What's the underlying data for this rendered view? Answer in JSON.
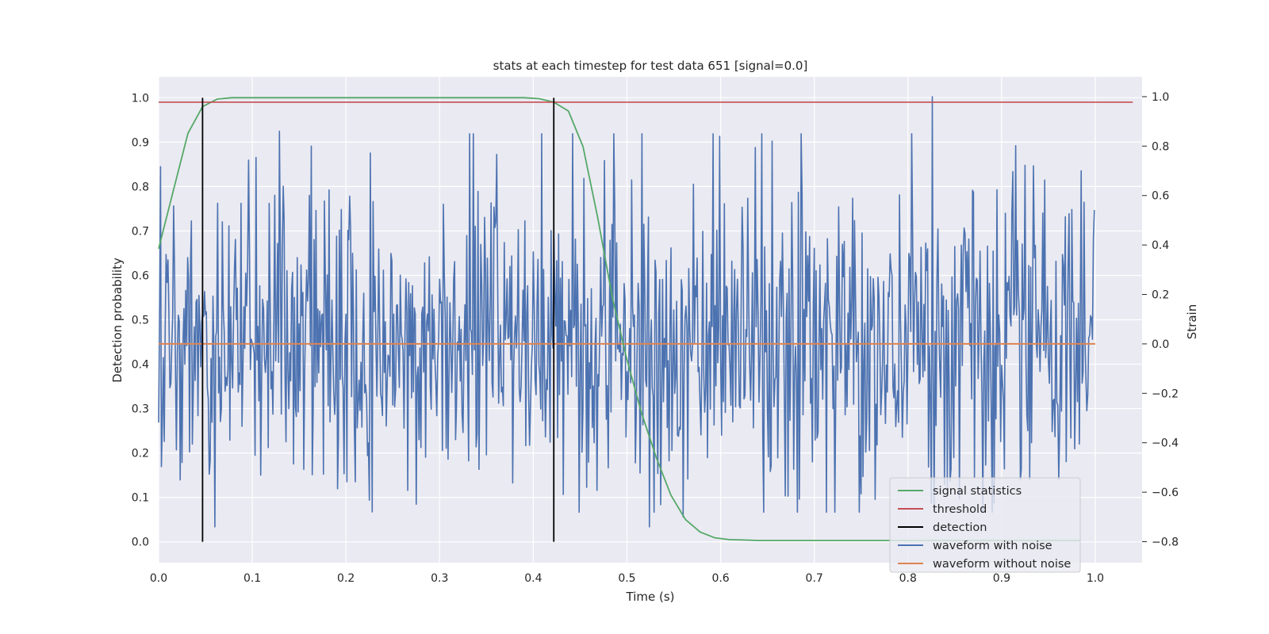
{
  "chart_data": {
    "type": "line",
    "title": "stats at each timestep for test data 651 [signal=0.0]",
    "xlabel": "Time (s)",
    "ylabel_left": "Detection probability",
    "ylabel_right": "Strain",
    "xlim": [
      0.0,
      1.05
    ],
    "ylim_left": [
      -0.047,
      1.047
    ],
    "ylim_right": [
      -0.885,
      1.08
    ],
    "x_ticks": [
      "0.0",
      "0.1",
      "0.2",
      "0.3",
      "0.4",
      "0.5",
      "0.6",
      "0.7",
      "0.8",
      "0.9",
      "1.0"
    ],
    "y_left_ticks": [
      "0.0",
      "0.1",
      "0.2",
      "0.3",
      "0.4",
      "0.5",
      "0.6",
      "0.7",
      "0.8",
      "0.9",
      "1.0"
    ],
    "y_right_ticks": [
      "−0.8",
      "−0.6",
      "−0.4",
      "−0.2",
      "0.0",
      "0.2",
      "0.4",
      "0.6",
      "0.8",
      "1.0"
    ],
    "grid": true,
    "legend_position": "lower-right",
    "series": [
      {
        "name": "signal statistics",
        "axis": "left",
        "color": "#55a868",
        "x": [
          0.0,
          0.0156,
          0.0313,
          0.0469,
          0.0625,
          0.0781,
          0.0938,
          0.1094,
          0.2,
          0.3,
          0.39,
          0.4063,
          0.4219,
          0.4375,
          0.4531,
          0.4688,
          0.4844,
          0.5,
          0.5156,
          0.5313,
          0.5469,
          0.5625,
          0.5781,
          0.5938,
          0.6094,
          0.625,
          0.6406,
          0.6563,
          0.7,
          0.8,
          0.9,
          0.95,
          0.9844
        ],
        "y": [
          0.66,
          0.79,
          0.92,
          0.98,
          0.997,
          1.0,
          1.0,
          1.0,
          1.0,
          1.0,
          1.0,
          0.998,
          0.99,
          0.97,
          0.89,
          0.73,
          0.55,
          0.41,
          0.29,
          0.19,
          0.105,
          0.05,
          0.022,
          0.009,
          0.005,
          0.004,
          0.003,
          0.003,
          0.003,
          0.003,
          0.003,
          0.003,
          0.003
        ]
      },
      {
        "name": "threshold",
        "axis": "left",
        "color": "#c44e52",
        "x": [
          0.0,
          1.04
        ],
        "y": [
          0.99,
          0.99
        ]
      },
      {
        "name": "detection",
        "axis": "left",
        "color": "#000000",
        "type": "vlines",
        "x": [
          0.0469,
          0.4219
        ],
        "ymin": 0.0,
        "ymax": 1.0
      },
      {
        "name": "waveform with noise",
        "axis": "right",
        "color": "#4c72b0",
        "x_start": 0.0,
        "x_step": 0.001,
        "n_points": 1000,
        "y_min": -0.74,
        "y_max": 1.0,
        "y_std": 0.3,
        "peaks": [
          {
            "x": 0.129,
            "y": 0.86
          },
          {
            "x": 0.163,
            "y": 0.8
          },
          {
            "x": 0.599,
            "y": 0.84
          },
          {
            "x": 0.655,
            "y": 0.82
          },
          {
            "x": 0.826,
            "y": 1.0
          },
          {
            "x": 0.934,
            "y": 0.72
          },
          {
            "x": 0.985,
            "y": 0.7
          },
          {
            "x": 0.06,
            "y": -0.74
          },
          {
            "x": 0.524,
            "y": -0.74
          },
          {
            "x": 0.228,
            "y": -0.68
          },
          {
            "x": 0.56,
            "y": -0.7
          }
        ]
      },
      {
        "name": "waveform without noise",
        "axis": "right",
        "color": "#dd8452",
        "x": [
          0.0,
          1.0
        ],
        "y": [
          0.0,
          0.0
        ]
      }
    ]
  }
}
